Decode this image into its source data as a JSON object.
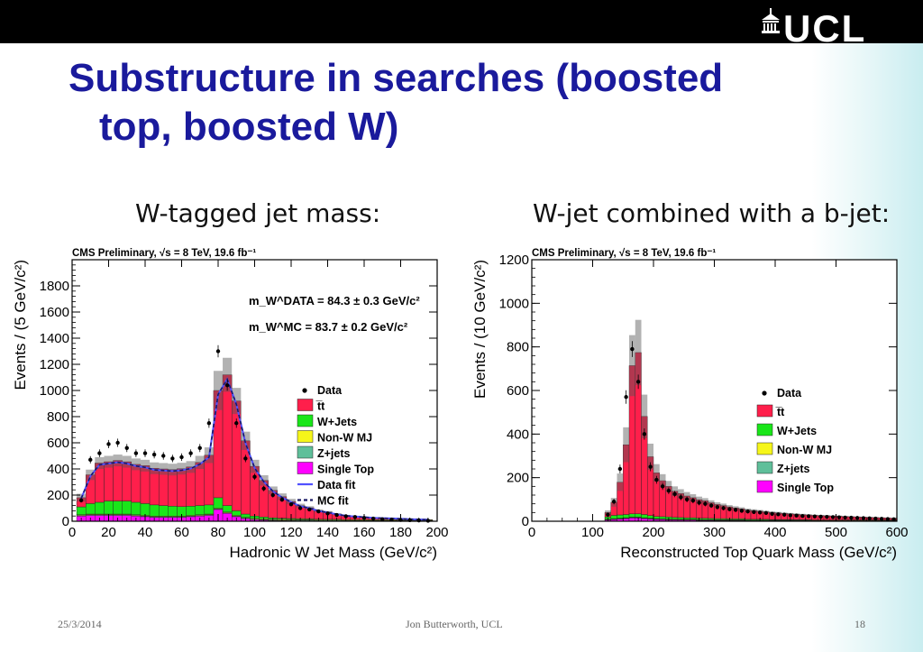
{
  "slide": {
    "title_line1": "Substructure in searches (boosted",
    "title_line2": "top, boosted W)",
    "subheading_left": "W-tagged jet mass:",
    "subheading_right": "W-jet combined with a b-jet:",
    "logo_text": "UCL",
    "footer_date": "25/3/2014",
    "footer_author": "Jon Butterworth, UCL",
    "footer_page": "18"
  },
  "chart_data": [
    {
      "type": "bar",
      "stacked": true,
      "banner": "CMS Preliminary, √s = 8 TeV, 19.6 fb⁻¹",
      "xlabel": "Hadronic W Jet Mass (GeV/c²)",
      "ylabel": "Events / (5 GeV/c²)",
      "xlim": [
        0,
        200
      ],
      "ylim": [
        0,
        2000
      ],
      "xticks": [
        0,
        20,
        40,
        60,
        80,
        100,
        120,
        140,
        160,
        180,
        200
      ],
      "yticks": [
        0,
        200,
        400,
        600,
        800,
        1000,
        1200,
        1400,
        1600,
        1800
      ],
      "annotation_data": "m_W^DATA = 84.3 ± 0.3 GeV/c²",
      "annotation_mc": "m_W^MC = 83.7 ± 0.2 GeV/c²",
      "bin_width": 5,
      "x": [
        5,
        10,
        15,
        20,
        25,
        30,
        35,
        40,
        45,
        50,
        55,
        60,
        65,
        70,
        75,
        80,
        85,
        90,
        95,
        100,
        105,
        110,
        115,
        120,
        125,
        130,
        135,
        140,
        145,
        150,
        155,
        160,
        165,
        170,
        175,
        180,
        185,
        190,
        195
      ],
      "series": [
        {
          "name": "t̅t",
          "color": "#ff1f4b",
          "values": [
            70,
            220,
            300,
            300,
            310,
            300,
            290,
            290,
            280,
            280,
            280,
            290,
            300,
            330,
            380,
            820,
            1000,
            840,
            560,
            380,
            280,
            210,
            165,
            130,
            100,
            85,
            65,
            55,
            40,
            30,
            25,
            20,
            15,
            12,
            10,
            8,
            6,
            4,
            2
          ]
        },
        {
          "name": "W+Jets",
          "color": "#19e619",
          "values": [
            60,
            80,
            90,
            100,
            100,
            100,
            95,
            90,
            85,
            80,
            75,
            72,
            70,
            70,
            70,
            80,
            50,
            35,
            25,
            18,
            14,
            10,
            8,
            7,
            6,
            5,
            4,
            3,
            3,
            2,
            2,
            1,
            1,
            1,
            1,
            1,
            0,
            0,
            0
          ]
        },
        {
          "name": "Non-W MJ",
          "color": "#f6f61a",
          "values": [
            5,
            5,
            5,
            5,
            5,
            5,
            5,
            5,
            5,
            5,
            5,
            5,
            5,
            5,
            5,
            5,
            5,
            5,
            5,
            5,
            5,
            5,
            5,
            5,
            5,
            5,
            5,
            5,
            5,
            5,
            5,
            5,
            5,
            5,
            5,
            5,
            5,
            5,
            5
          ]
        },
        {
          "name": "Z+jets",
          "color": "#5fbf9a",
          "values": [
            5,
            5,
            5,
            5,
            5,
            5,
            5,
            5,
            5,
            5,
            5,
            5,
            5,
            5,
            5,
            5,
            5,
            5,
            5,
            5,
            5,
            5,
            5,
            5,
            5,
            5,
            5,
            5,
            5,
            5,
            5,
            5,
            5,
            5,
            5,
            5,
            5,
            5,
            5
          ]
        },
        {
          "name": "Single Top",
          "color": "#ff00ff",
          "values": [
            40,
            45,
            45,
            45,
            45,
            45,
            40,
            35,
            30,
            30,
            30,
            30,
            35,
            40,
            45,
            90,
            60,
            35,
            20,
            12,
            8,
            6,
            5,
            4,
            3,
            3,
            2,
            2,
            2,
            1,
            1,
            1,
            1,
            1,
            1,
            0,
            0,
            0,
            0
          ]
        }
      ],
      "uncertainty": [
        30,
        40,
        45,
        45,
        45,
        45,
        45,
        45,
        45,
        45,
        45,
        45,
        45,
        50,
        60,
        150,
        130,
        100,
        70,
        50,
        40,
        30,
        25,
        20,
        15,
        12,
        10,
        8,
        6,
        5,
        4,
        3,
        3,
        2,
        2,
        2,
        1,
        1,
        1
      ],
      "data_points": [
        {
          "name": "Data",
          "values": [
            160,
            470,
            520,
            590,
            600,
            560,
            520,
            520,
            510,
            500,
            480,
            490,
            520,
            560,
            750,
            1300,
            1040,
            750,
            480,
            340,
            250,
            200,
            165,
            130,
            100,
            90,
            75,
            60,
            48,
            38,
            32,
            25,
            20,
            15,
            12,
            10,
            8,
            6,
            4
          ]
        }
      ],
      "fit_lines": [
        {
          "name": "Data fit",
          "color": "#5151ff",
          "dashed": false
        },
        {
          "name": "MC fit",
          "color": "#1a1a66",
          "dashed": true
        }
      ],
      "legend": [
        "Data",
        "t̅t",
        "W+Jets",
        "Non-W MJ",
        "Z+jets",
        "Single Top",
        "Data fit",
        "MC fit"
      ],
      "legend_position": "right"
    },
    {
      "type": "bar",
      "stacked": true,
      "banner": "CMS Preliminary, √s = 8 TeV, 19.6 fb⁻¹",
      "xlabel": "Reconstructed Top Quark Mass (GeV/c²)",
      "ylabel": "Events / (10 GeV/c²)",
      "xlim": [
        0,
        600
      ],
      "ylim": [
        0,
        1200
      ],
      "xticks": [
        0,
        100,
        200,
        300,
        400,
        500,
        600
      ],
      "yticks": [
        0,
        200,
        400,
        600,
        800,
        1000,
        1200
      ],
      "bin_width": 10,
      "x": [
        125,
        135,
        145,
        155,
        165,
        175,
        185,
        195,
        205,
        215,
        225,
        235,
        245,
        255,
        265,
        275,
        285,
        295,
        305,
        315,
        325,
        335,
        345,
        355,
        365,
        375,
        385,
        395,
        405,
        415,
        425,
        435,
        445,
        455,
        465,
        475,
        485,
        495,
        505,
        515,
        525,
        535,
        545,
        555,
        565,
        575,
        585,
        595
      ],
      "series": [
        {
          "name": "t̅t",
          "color": "#ff1f4b",
          "values": [
            20,
            60,
            150,
            320,
            680,
            740,
            450,
            270,
            200,
            165,
            140,
            120,
            110,
            100,
            92,
            85,
            80,
            72,
            65,
            60,
            55,
            50,
            46,
            42,
            40,
            37,
            34,
            32,
            30,
            28,
            26,
            25,
            23,
            22,
            21,
            20,
            19,
            18,
            17,
            16,
            15,
            14,
            13,
            12,
            11,
            10,
            9,
            8
          ]
        },
        {
          "name": "W+Jets",
          "color": "#19e619",
          "values": [
            10,
            15,
            15,
            15,
            15,
            15,
            15,
            12,
            10,
            10,
            10,
            8,
            8,
            7,
            7,
            6,
            6,
            5,
            5,
            5,
            4,
            4,
            4,
            3,
            3,
            3,
            3,
            2,
            2,
            2,
            2,
            2,
            2,
            2,
            1,
            1,
            1,
            1,
            1,
            1,
            1,
            1,
            1,
            1,
            1,
            1,
            1,
            1
          ]
        },
        {
          "name": "Non-W MJ",
          "color": "#f6f61a",
          "values": [
            2,
            2,
            2,
            2,
            2,
            2,
            2,
            2,
            2,
            2,
            2,
            2,
            2,
            2,
            2,
            2,
            2,
            2,
            2,
            2,
            2,
            2,
            2,
            2,
            2,
            2,
            2,
            2,
            2,
            2,
            2,
            2,
            2,
            2,
            2,
            2,
            2,
            2,
            2,
            2,
            2,
            2,
            2,
            2,
            2,
            2,
            2,
            2
          ]
        },
        {
          "name": "Z+jets",
          "color": "#5fbf9a",
          "values": [
            2,
            2,
            2,
            2,
            2,
            2,
            2,
            2,
            2,
            2,
            2,
            2,
            2,
            2,
            2,
            2,
            2,
            2,
            2,
            2,
            2,
            2,
            2,
            2,
            2,
            2,
            2,
            2,
            2,
            2,
            2,
            2,
            2,
            2,
            2,
            2,
            2,
            2,
            2,
            2,
            2,
            2,
            2,
            2,
            2,
            2,
            2,
            2
          ]
        },
        {
          "name": "Single Top",
          "color": "#ff00ff",
          "values": [
            6,
            8,
            10,
            12,
            15,
            15,
            12,
            10,
            8,
            7,
            6,
            6,
            5,
            5,
            5,
            4,
            4,
            4,
            3,
            3,
            3,
            3,
            3,
            2,
            2,
            2,
            2,
            2,
            2,
            2,
            2,
            1,
            1,
            1,
            1,
            1,
            1,
            1,
            1,
            1,
            1,
            1,
            1,
            1,
            1,
            1,
            1,
            1
          ]
        }
      ],
      "uncertainty": [
        10,
        20,
        40,
        80,
        140,
        150,
        100,
        60,
        40,
        30,
        25,
        22,
        20,
        18,
        16,
        14,
        12,
        11,
        10,
        9,
        8,
        8,
        7,
        7,
        6,
        6,
        5,
        5,
        5,
        4,
        4,
        4,
        4,
        3,
        3,
        3,
        3,
        3,
        3,
        2,
        2,
        2,
        2,
        2,
        2,
        2,
        2,
        2
      ],
      "data_points": [
        {
          "name": "Data",
          "values": [
            30,
            90,
            240,
            570,
            790,
            640,
            400,
            250,
            190,
            160,
            140,
            125,
            110,
            100,
            95,
            85,
            80,
            72,
            65,
            60,
            55,
            52,
            48,
            45,
            42,
            40,
            38,
            34,
            32,
            30,
            27,
            26,
            24,
            23,
            22,
            21,
            20,
            19,
            18,
            17,
            16,
            15,
            14,
            13,
            12,
            11,
            10,
            9
          ]
        }
      ],
      "legend": [
        "Data",
        "t̅t",
        "W+Jets",
        "Non-W MJ",
        "Z+jets",
        "Single Top"
      ],
      "legend_position": "right"
    }
  ]
}
